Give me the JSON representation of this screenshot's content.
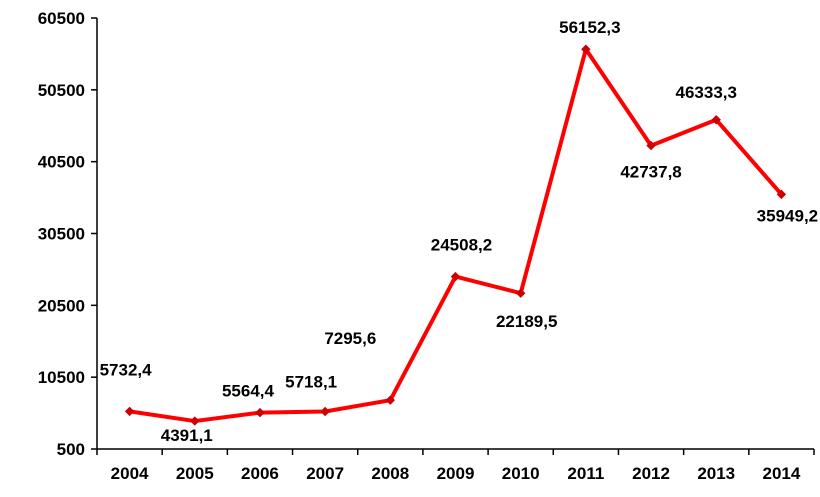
{
  "chart_data": {
    "type": "line",
    "categories": [
      "2004",
      "2005",
      "2006",
      "2007",
      "2008",
      "2009",
      "2010",
      "2011",
      "2012",
      "2013",
      "2014"
    ],
    "values": [
      5732.4,
      4391.1,
      5564.4,
      5718.1,
      7295.6,
      24508.2,
      22189.5,
      56152.3,
      42737.8,
      46333.3,
      35949.2
    ],
    "data_labels": [
      "5732,4",
      "4391,1",
      "5564,4",
      "5718,1",
      "7295,6",
      "24508,2",
      "22189,5",
      "56152,3",
      "42737,8",
      "46333,3",
      "35949,2"
    ],
    "ytick_labels": [
      "500",
      "10500",
      "20500",
      "30500",
      "40500",
      "50500",
      "60500"
    ],
    "ylim": [
      500,
      60500
    ],
    "title": "",
    "xlabel": "",
    "ylabel": "",
    "grid": false,
    "legend": "none",
    "line_color": "#ff0000",
    "marker_color": "#cc0000"
  }
}
